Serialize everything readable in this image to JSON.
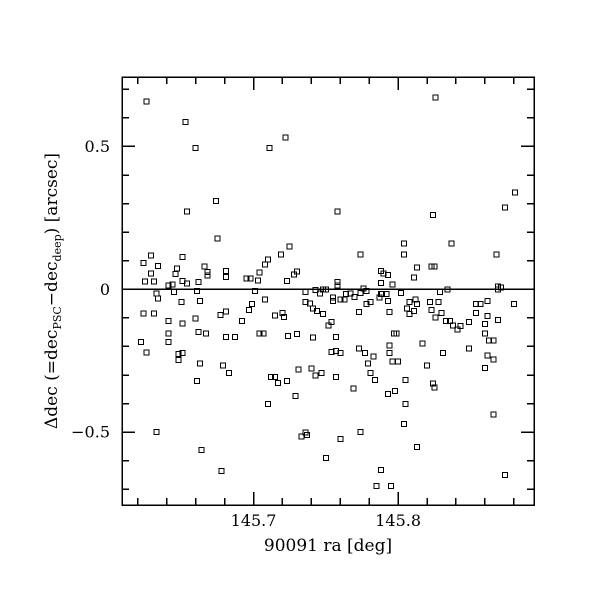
{
  "figure": {
    "background": "#ffffff",
    "foreground": "#000000"
  },
  "chart_data": {
    "type": "scatter",
    "title": "",
    "xlabel": "90091 ra [deg]",
    "ylabel": "Δdec (=dec_PSC−dec_deep) [arcsec]",
    "ylabel_parts": [
      {
        "text": "Δdec (=dec",
        "sub": false
      },
      {
        "text": "PSC",
        "sub": true
      },
      {
        "text": "−dec",
        "sub": false
      },
      {
        "text": "deep",
        "sub": true
      },
      {
        "text": ") [arcsec]",
        "sub": false
      }
    ],
    "marker": "open-square",
    "marker_color": "#000000",
    "marker_size_px": 5,
    "grid": false,
    "legend": null,
    "xlim": [
      145.609,
      145.894
    ],
    "ylim": [
      -0.755,
      0.743
    ],
    "xticks_major": [
      {
        "value": 145.7,
        "label": "145.7"
      },
      {
        "value": 145.8,
        "label": "145.8"
      }
    ],
    "xticks_minor_step": 0.02,
    "yticks_major": [
      {
        "value": -0.5,
        "label": "−0.5"
      },
      {
        "value": 0,
        "label": "0"
      },
      {
        "value": 0.5,
        "label": "0.5"
      }
    ],
    "yticks_minor_step": 0.1,
    "reference_line_y": 0,
    "points": [
      [
        145.626,
        0.657
      ],
      [
        145.653,
        0.586
      ],
      [
        145.66,
        0.494
      ],
      [
        145.711,
        0.494
      ],
      [
        145.722,
        0.531
      ],
      [
        145.826,
        0.671
      ],
      [
        145.674,
        0.309
      ],
      [
        145.654,
        0.272
      ],
      [
        145.675,
        0.178
      ],
      [
        145.758,
        0.272
      ],
      [
        145.824,
        0.26
      ],
      [
        145.881,
        0.339
      ],
      [
        145.874,
        0.287
      ],
      [
        145.804,
        0.16
      ],
      [
        145.837,
        0.16
      ],
      [
        145.725,
        0.15
      ],
      [
        145.629,
        0.119
      ],
      [
        145.624,
        0.092
      ],
      [
        145.634,
        0.081
      ],
      [
        145.629,
        0.055
      ],
      [
        145.625,
        0.027
      ],
      [
        145.631,
        0.027
      ],
      [
        145.641,
        0.014
      ],
      [
        145.644,
        0.016
      ],
      [
        145.646,
        0.053
      ],
      [
        145.647,
        0.072
      ],
      [
        145.651,
        0.113
      ],
      [
        145.651,
        0.029
      ],
      [
        145.654,
        0.021
      ],
      [
        145.662,
        0.026
      ],
      [
        145.666,
        0.079
      ],
      [
        145.668,
        0.061
      ],
      [
        145.668,
        0.048
      ],
      [
        145.681,
        0.064
      ],
      [
        145.681,
        0.043
      ],
      [
        145.695,
        0.038
      ],
      [
        145.698,
        0.038
      ],
      [
        145.703,
        0.031
      ],
      [
        145.704,
        0.059
      ],
      [
        145.708,
        0.087
      ],
      [
        145.71,
        0.105
      ],
      [
        145.719,
        0.122
      ],
      [
        145.723,
        0.029
      ],
      [
        145.728,
        0.052
      ],
      [
        145.73,
        0.063
      ],
      [
        145.774,
        0.122
      ],
      [
        145.804,
        0.122
      ],
      [
        145.868,
        0.122
      ],
      [
        145.813,
        0.076
      ],
      [
        145.823,
        0.08
      ],
      [
        145.825,
        0.08
      ],
      [
        145.788,
        0.064
      ],
      [
        145.79,
        0.055
      ],
      [
        145.793,
        0.05
      ],
      [
        145.811,
        0.041
      ],
      [
        145.788,
        0.022
      ],
      [
        145.796,
        0.016
      ],
      [
        145.758,
        0.026
      ],
      [
        145.758,
        0.014
      ],
      [
        145.776,
        0.002
      ],
      [
        145.871,
        0.006
      ],
      [
        145.869,
        0.01
      ],
      [
        145.633,
        -0.015
      ],
      [
        145.634,
        -0.033
      ],
      [
        145.645,
        -0.009
      ],
      [
        145.65,
        -0.045
      ],
      [
        145.661,
        -0.006
      ],
      [
        145.663,
        -0.041
      ],
      [
        145.699,
        -0.052
      ],
      [
        145.701,
        -0.006
      ],
      [
        145.708,
        -0.035
      ],
      [
        145.736,
        -0.009
      ],
      [
        145.736,
        -0.044
      ],
      [
        145.739,
        -0.05
      ],
      [
        145.741,
        -0.067
      ],
      [
        145.743,
        -0.003
      ],
      [
        145.748,
        -0.001
      ],
      [
        145.75,
        -0.001
      ],
      [
        145.746,
        -0.015
      ],
      [
        145.755,
        -0.029
      ],
      [
        145.755,
        -0.041
      ],
      [
        145.76,
        -0.036
      ],
      [
        145.763,
        -0.036
      ],
      [
        145.767,
        -0.015
      ],
      [
        145.764,
        -0.017
      ],
      [
        145.77,
        -0.027
      ],
      [
        145.774,
        -0.013
      ],
      [
        145.778,
        -0.006
      ],
      [
        145.781,
        -0.044
      ],
      [
        145.778,
        -0.052
      ],
      [
        145.787,
        -0.029
      ],
      [
        145.788,
        -0.017
      ],
      [
        145.789,
        -0.017
      ],
      [
        145.792,
        -0.017
      ],
      [
        145.793,
        -0.041
      ],
      [
        145.802,
        -0.013
      ],
      [
        145.806,
        -0.067
      ],
      [
        145.808,
        -0.044
      ],
      [
        145.812,
        -0.036
      ],
      [
        145.813,
        -0.052
      ],
      [
        145.822,
        -0.044
      ],
      [
        145.828,
        -0.044
      ],
      [
        145.829,
        -0.009
      ],
      [
        145.834,
        -0.001
      ],
      [
        145.854,
        -0.052
      ],
      [
        145.857,
        -0.052
      ],
      [
        145.862,
        -0.041
      ],
      [
        145.869,
        -0.001
      ],
      [
        145.88,
        -0.052
      ],
      [
        145.697,
        -0.073
      ],
      [
        145.624,
        -0.085
      ],
      [
        145.631,
        -0.085
      ],
      [
        145.641,
        -0.111
      ],
      [
        145.651,
        -0.12
      ],
      [
        145.66,
        -0.102
      ],
      [
        145.677,
        -0.09
      ],
      [
        145.681,
        -0.077
      ],
      [
        145.692,
        -0.111
      ],
      [
        145.715,
        -0.091
      ],
      [
        145.72,
        -0.083
      ],
      [
        145.721,
        -0.097
      ],
      [
        145.744,
        -0.076
      ],
      [
        145.748,
        -0.087
      ],
      [
        145.773,
        -0.079
      ],
      [
        145.794,
        -0.079
      ],
      [
        145.811,
        -0.076
      ],
      [
        145.808,
        -0.087
      ],
      [
        145.823,
        -0.073
      ],
      [
        145.83,
        -0.083
      ],
      [
        145.826,
        -0.099
      ],
      [
        145.833,
        -0.111
      ],
      [
        145.836,
        -0.111
      ],
      [
        145.849,
        -0.114
      ],
      [
        145.854,
        -0.083
      ],
      [
        145.862,
        -0.094
      ],
      [
        145.86,
        -0.121
      ],
      [
        145.869,
        -0.107
      ],
      [
        145.838,
        -0.126
      ],
      [
        145.841,
        -0.14
      ],
      [
        145.843,
        -0.128
      ],
      [
        145.754,
        -0.114
      ],
      [
        145.752,
        -0.127
      ],
      [
        145.622,
        -0.184
      ],
      [
        145.626,
        -0.221
      ],
      [
        145.641,
        -0.155
      ],
      [
        145.641,
        -0.184
      ],
      [
        145.648,
        -0.227
      ],
      [
        145.651,
        -0.223
      ],
      [
        145.648,
        -0.248
      ],
      [
        145.662,
        -0.15
      ],
      [
        145.667,
        -0.155
      ],
      [
        145.681,
        -0.167
      ],
      [
        145.687,
        -0.167
      ],
      [
        145.704,
        -0.155
      ],
      [
        145.707,
        -0.155
      ],
      [
        145.724,
        -0.164
      ],
      [
        145.73,
        -0.157
      ],
      [
        145.741,
        -0.169
      ],
      [
        145.757,
        -0.167
      ],
      [
        145.757,
        -0.216
      ],
      [
        145.754,
        -0.219
      ],
      [
        145.76,
        -0.223
      ],
      [
        145.773,
        -0.207
      ],
      [
        145.777,
        -0.223
      ],
      [
        145.783,
        -0.235
      ],
      [
        145.794,
        -0.196
      ],
      [
        145.794,
        -0.223
      ],
      [
        145.797,
        -0.155
      ],
      [
        145.799,
        -0.155
      ],
      [
        145.817,
        -0.189
      ],
      [
        145.831,
        -0.223
      ],
      [
        145.849,
        -0.207
      ],
      [
        145.86,
        -0.155
      ],
      [
        145.863,
        -0.179
      ],
      [
        145.866,
        -0.179
      ],
      [
        145.862,
        -0.231
      ],
      [
        145.866,
        -0.245
      ],
      [
        145.663,
        -0.26
      ],
      [
        145.661,
        -0.321
      ],
      [
        145.679,
        -0.266
      ],
      [
        145.683,
        -0.293
      ],
      [
        145.731,
        -0.281
      ],
      [
        145.74,
        -0.277
      ],
      [
        145.712,
        -0.307
      ],
      [
        145.715,
        -0.307
      ],
      [
        145.717,
        -0.328
      ],
      [
        145.723,
        -0.321
      ],
      [
        145.743,
        -0.301
      ],
      [
        145.747,
        -0.293
      ],
      [
        145.729,
        -0.374
      ],
      [
        145.71,
        -0.402
      ],
      [
        145.779,
        -0.26
      ],
      [
        145.781,
        -0.293
      ],
      [
        145.784,
        -0.318
      ],
      [
        145.757,
        -0.307
      ],
      [
        145.769,
        -0.347
      ],
      [
        145.796,
        -0.252
      ],
      [
        145.8,
        -0.252
      ],
      [
        145.793,
        -0.367
      ],
      [
        145.798,
        -0.356
      ],
      [
        145.805,
        -0.318
      ],
      [
        145.805,
        -0.402
      ],
      [
        145.82,
        -0.266
      ],
      [
        145.824,
        -0.33
      ],
      [
        145.825,
        -0.344
      ],
      [
        145.86,
        -0.276
      ],
      [
        145.866,
        -0.439
      ],
      [
        145.633,
        -0.499
      ],
      [
        145.664,
        -0.563
      ],
      [
        145.678,
        -0.636
      ],
      [
        145.733,
        -0.516
      ],
      [
        145.736,
        -0.501
      ],
      [
        145.737,
        -0.51
      ],
      [
        145.75,
        -0.59
      ],
      [
        145.76,
        -0.524
      ],
      [
        145.774,
        -0.499
      ],
      [
        145.804,
        -0.472
      ],
      [
        145.813,
        -0.552
      ],
      [
        145.788,
        -0.633
      ],
      [
        145.785,
        -0.689
      ],
      [
        145.795,
        -0.689
      ],
      [
        145.874,
        -0.65
      ]
    ]
  }
}
